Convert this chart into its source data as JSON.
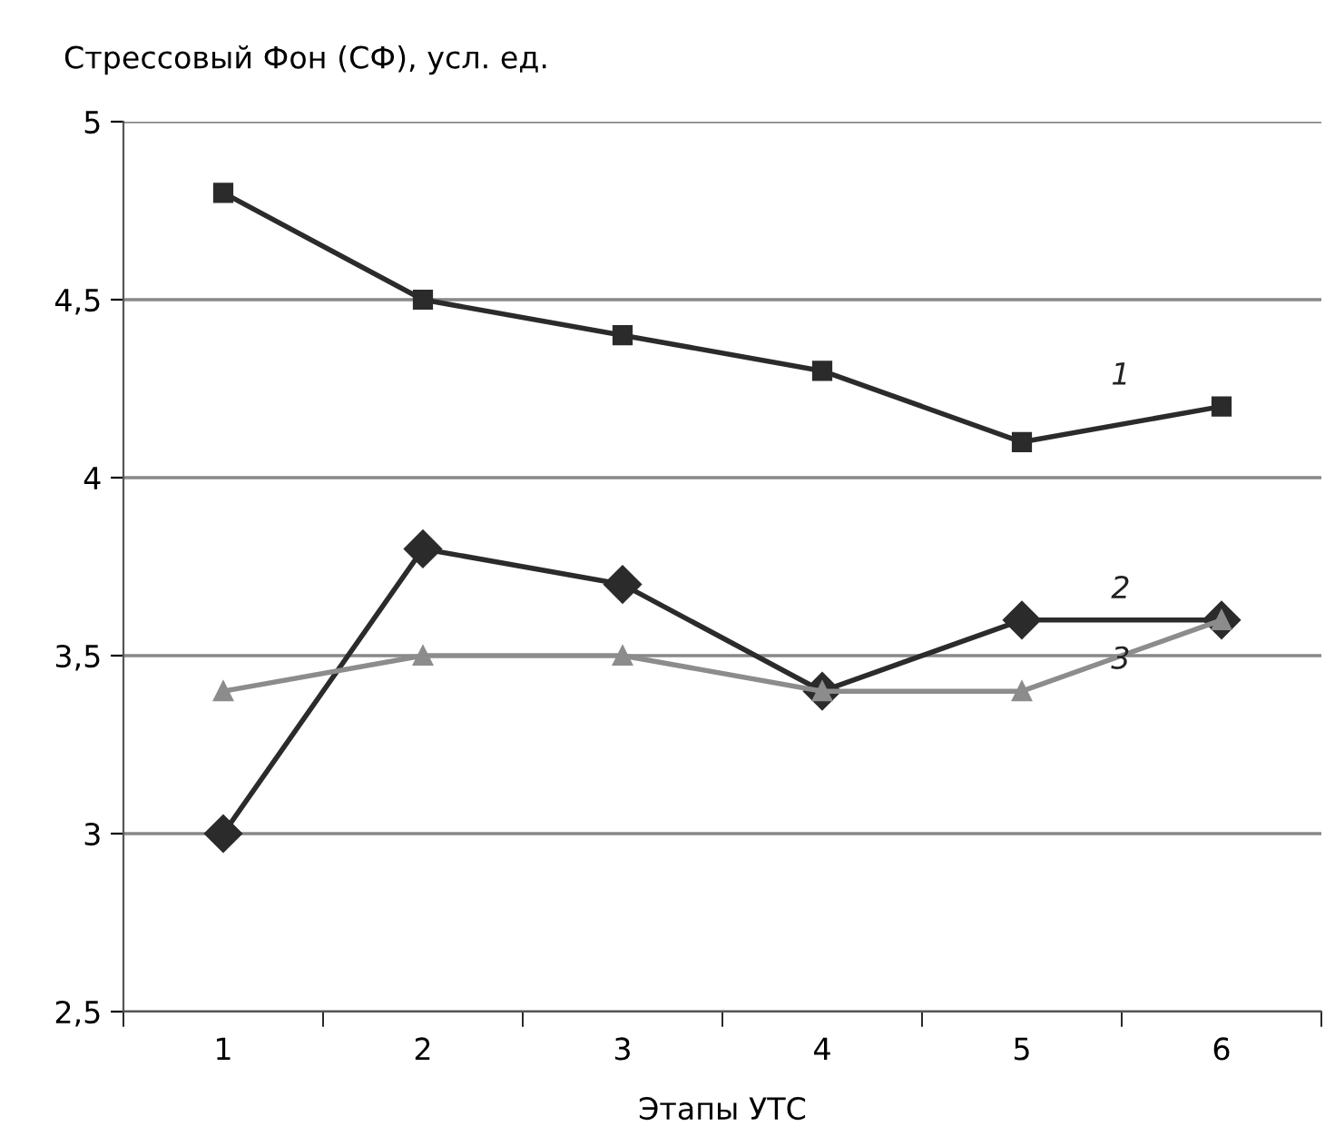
{
  "chart_data": {
    "type": "line",
    "ylabel": "Стрессовый Фон (СФ), усл. ед.",
    "xlabel": "Этапы УТС",
    "categories": [
      "1",
      "2",
      "3",
      "4",
      "5",
      "6"
    ],
    "series": [
      {
        "name": "1",
        "color": "#2b2b2b",
        "marker": "square",
        "values": [
          4.8,
          4.5,
          4.4,
          4.3,
          4.1,
          4.2
        ]
      },
      {
        "name": "2",
        "color": "#2b2b2b",
        "marker": "diamond",
        "values": [
          3.0,
          3.8,
          3.7,
          3.4,
          3.6,
          3.6
        ]
      },
      {
        "name": "3",
        "color": "#8c8c8c",
        "marker": "triangle",
        "values": [
          3.4,
          3.5,
          3.5,
          3.4,
          3.4,
          3.6
        ]
      }
    ],
    "ylim": [
      2.5,
      5
    ],
    "yticks": [
      {
        "value": 2.5,
        "label": "2,5"
      },
      3,
      {
        "value": 3.5,
        "label": "3,5"
      },
      4,
      {
        "value": 4.5,
        "label": "4,5"
      },
      5
    ],
    "grid": "y",
    "legend": false,
    "line_style": "solid"
  }
}
